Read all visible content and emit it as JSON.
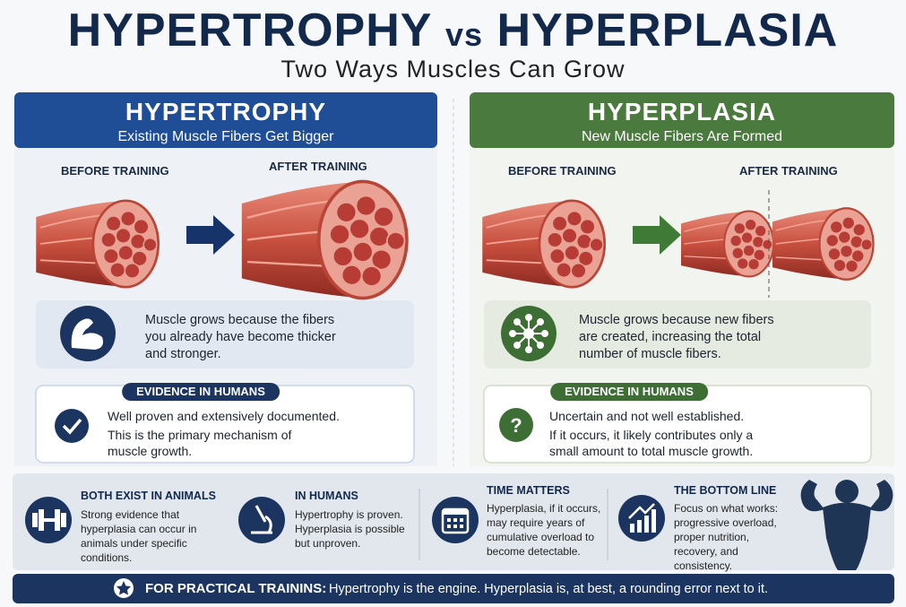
{
  "header": {
    "title_left": "HYPERTROPHY",
    "title_vs": "vs",
    "title_right": "HYPERPLASIA",
    "subtitle": "Two Ways Muscles Can Grow"
  },
  "panels": [
    {
      "title": "HYPERTROPHY",
      "subtitle": "Existing Muscle Fibers Get Bigger",
      "before_label": "BEFORE TRAINING",
      "after_label": "AFTER TRAINING",
      "explanation": "Muscle grows because the fibers you already have become thicker and stronger.",
      "evidence_heading": "EVIDENCE IN HUMANS",
      "evidence_lines": [
        "Well proven and extensively documented.",
        "This is the primary mechanism of muscle growth."
      ]
    },
    {
      "title": "HYPERPLASIA",
      "subtitle": "New Muscle Fibers Are Formed",
      "before_label": "BEFORE TRAINING",
      "after_label": "AFTER TRAINING",
      "explanation": "Muscle grows because new fibers are created, increasing the total number of muscle fibers.",
      "evidence_heading": "EVIDENCE IN HUMANS",
      "evidence_lines": [
        "Uncertain and not well established.",
        "If it occurs, it likely contributes only a small amount to total muscle growth."
      ]
    }
  ],
  "summary": [
    {
      "heading": "BOTH EXIST IN ANIMALS",
      "text": "Strong evidence that hyperplasia can occur in animals under specific conditions."
    },
    {
      "heading": "IN HUMANS",
      "text": "Hypertrophy is proven. Hyperplasia is possible but unproven."
    },
    {
      "heading": "TIME MATTERS",
      "text": "Hyperplasia, if it occurs, may require years of cumulative overload to become detectable."
    },
    {
      "heading": "THE BOTTOM LINE",
      "text": "Focus on what works: progressive overload, proper nutrition, recovery, and consistency."
    }
  ],
  "footer": {
    "label": "FOR PRACTICAL TRAININS:",
    "text": "Hypertrophy is the engine. Hyperplasia is, at best, a rounding error next to it."
  }
}
